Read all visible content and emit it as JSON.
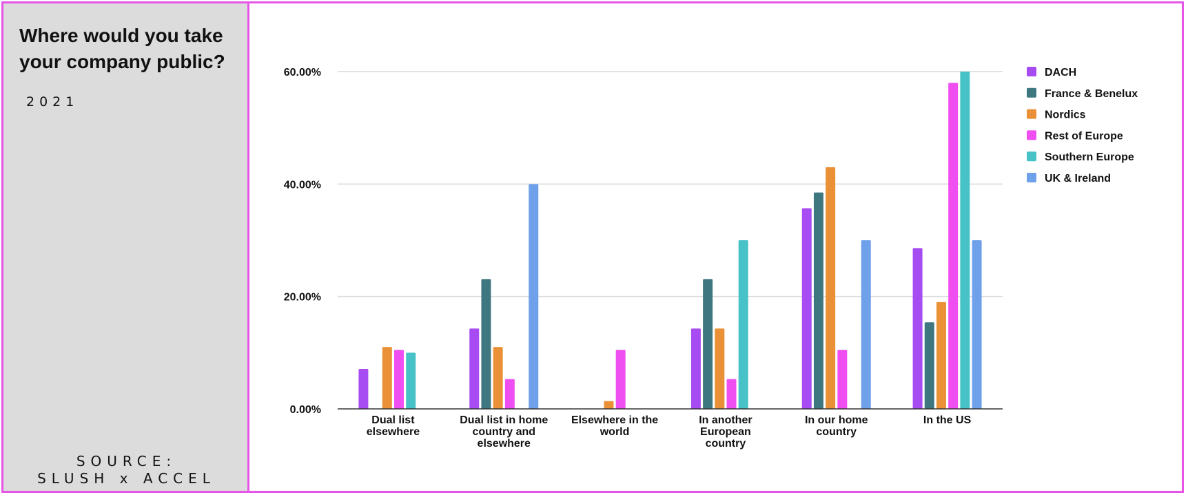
{
  "panel": {
    "title_line1": "Where would you take",
    "title_line2": "your company public?",
    "year": "2021",
    "source_line1": "SOURCE:",
    "source_line2": "SLUSH x ACCEL"
  },
  "chart_data": {
    "type": "bar",
    "title": "Where would you take your company public?",
    "subtitle": "2021",
    "xlabel": "",
    "ylabel": "",
    "ylim": [
      0,
      60
    ],
    "yticks": [
      "0.00%",
      "20.00%",
      "40.00%",
      "60.00%"
    ],
    "ytick_values": [
      0,
      20,
      40,
      60
    ],
    "grid": true,
    "legend_position": "right",
    "categories": [
      [
        "Dual list",
        "elsewhere"
      ],
      [
        "Dual list in home",
        "country and",
        "elsewhere"
      ],
      [
        "Elsewhere in the",
        "world"
      ],
      [
        "In another",
        "European",
        "country"
      ],
      [
        "In our home",
        "country"
      ],
      [
        "In the US"
      ]
    ],
    "series": [
      {
        "name": "DACH",
        "color": "#a64cf2",
        "values": [
          7.1,
          14.3,
          0,
          14.3,
          35.7,
          28.6
        ]
      },
      {
        "name": "France & Benelux",
        "color": "#3f7780",
        "values": [
          0,
          23.1,
          0,
          23.1,
          38.5,
          15.4
        ]
      },
      {
        "name": "Nordics",
        "color": "#ea9137",
        "values": [
          11.0,
          11.0,
          1.4,
          14.3,
          43.0,
          19.0
        ]
      },
      {
        "name": "Rest of Europe",
        "color": "#ef4ff0",
        "values": [
          10.5,
          5.3,
          10.5,
          5.3,
          10.5,
          58.0
        ]
      },
      {
        "name": "Southern Europe",
        "color": "#47c2c7",
        "values": [
          10.0,
          0,
          0,
          30.0,
          0,
          60.0
        ]
      },
      {
        "name": "UK & Ireland",
        "color": "#6fa1ea",
        "values": [
          0,
          40.0,
          0,
          0,
          30.0,
          30.0
        ]
      }
    ]
  },
  "source": "SOURCE: SLUSH x ACCEL"
}
